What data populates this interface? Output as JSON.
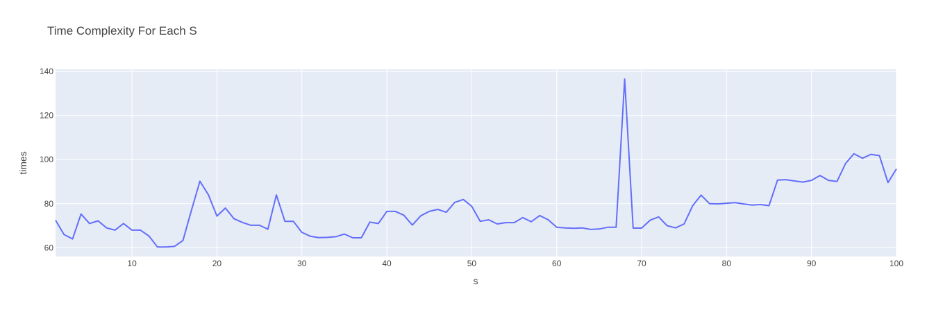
{
  "chart_data": {
    "type": "line",
    "title": "Time Complexity For Each S",
    "xlabel": "s",
    "ylabel": "times",
    "xlim": [
      1,
      100
    ],
    "ylim": [
      56,
      141
    ],
    "xticks": [
      10,
      20,
      30,
      40,
      50,
      60,
      70,
      80,
      90,
      100
    ],
    "yticks": [
      60,
      80,
      100,
      120,
      140
    ],
    "grid": true,
    "colors": {
      "plot_bg": "#E5ECF6",
      "line": "#636EFA",
      "grid": "#FFFFFF",
      "text": "#444444"
    },
    "series": [
      {
        "x": [
          1,
          2,
          3,
          4,
          5,
          6,
          7,
          8,
          9,
          10,
          11,
          12,
          13,
          14,
          15,
          16,
          17,
          18,
          19,
          20,
          21,
          22,
          23,
          24,
          25,
          26,
          27,
          28,
          29,
          30,
          31,
          32,
          33,
          34,
          35,
          36,
          37,
          38,
          39,
          40,
          41,
          42,
          43,
          44,
          45,
          46,
          47,
          48,
          49,
          50,
          51,
          52,
          53,
          54,
          55,
          56,
          57,
          58,
          59,
          60,
          61,
          62,
          63,
          64,
          65,
          66,
          67,
          68,
          69,
          70,
          71,
          72,
          73,
          74,
          75,
          76,
          77,
          78,
          79,
          80,
          81,
          82,
          83,
          84,
          85,
          86,
          87,
          88,
          89,
          90,
          91,
          92,
          93,
          94,
          95,
          96,
          97,
          98,
          99,
          100
        ],
        "y": [
          72.5,
          66,
          64,
          75.3,
          71,
          72.2,
          69,
          68,
          71,
          68,
          68,
          65.3,
          60.3,
          60.3,
          60.6,
          63.3,
          77,
          90.2,
          84,
          74.4,
          78,
          73.2,
          71.5,
          70.2,
          70.2,
          68.4,
          84,
          72,
          72,
          67,
          65.2,
          64.6,
          64.7,
          65,
          66.2,
          64.5,
          64.5,
          71.6,
          71,
          76.5,
          76.5,
          74.8,
          70.3,
          74.5,
          76.5,
          77.4,
          76.1,
          80.6,
          81.9,
          78.8,
          72,
          72.7,
          70.8,
          71.4,
          71.4,
          73.7,
          71.8,
          74.6,
          72.7,
          69.3,
          69,
          68.8,
          69,
          68.3,
          68.5,
          69.3,
          69.3,
          136.6,
          68.9,
          68.9,
          72.5,
          74,
          70,
          69,
          70.8,
          79,
          83.9,
          80,
          79.9,
          80.2,
          80.5,
          79.9,
          79.4,
          79.6,
          79.1,
          90.7,
          90.9,
          90.3,
          89.8,
          90.6,
          92.8,
          90.6,
          90.1,
          98.2,
          102.7,
          100.6,
          102.4,
          101.8,
          89.6,
          95.8
        ]
      }
    ]
  }
}
